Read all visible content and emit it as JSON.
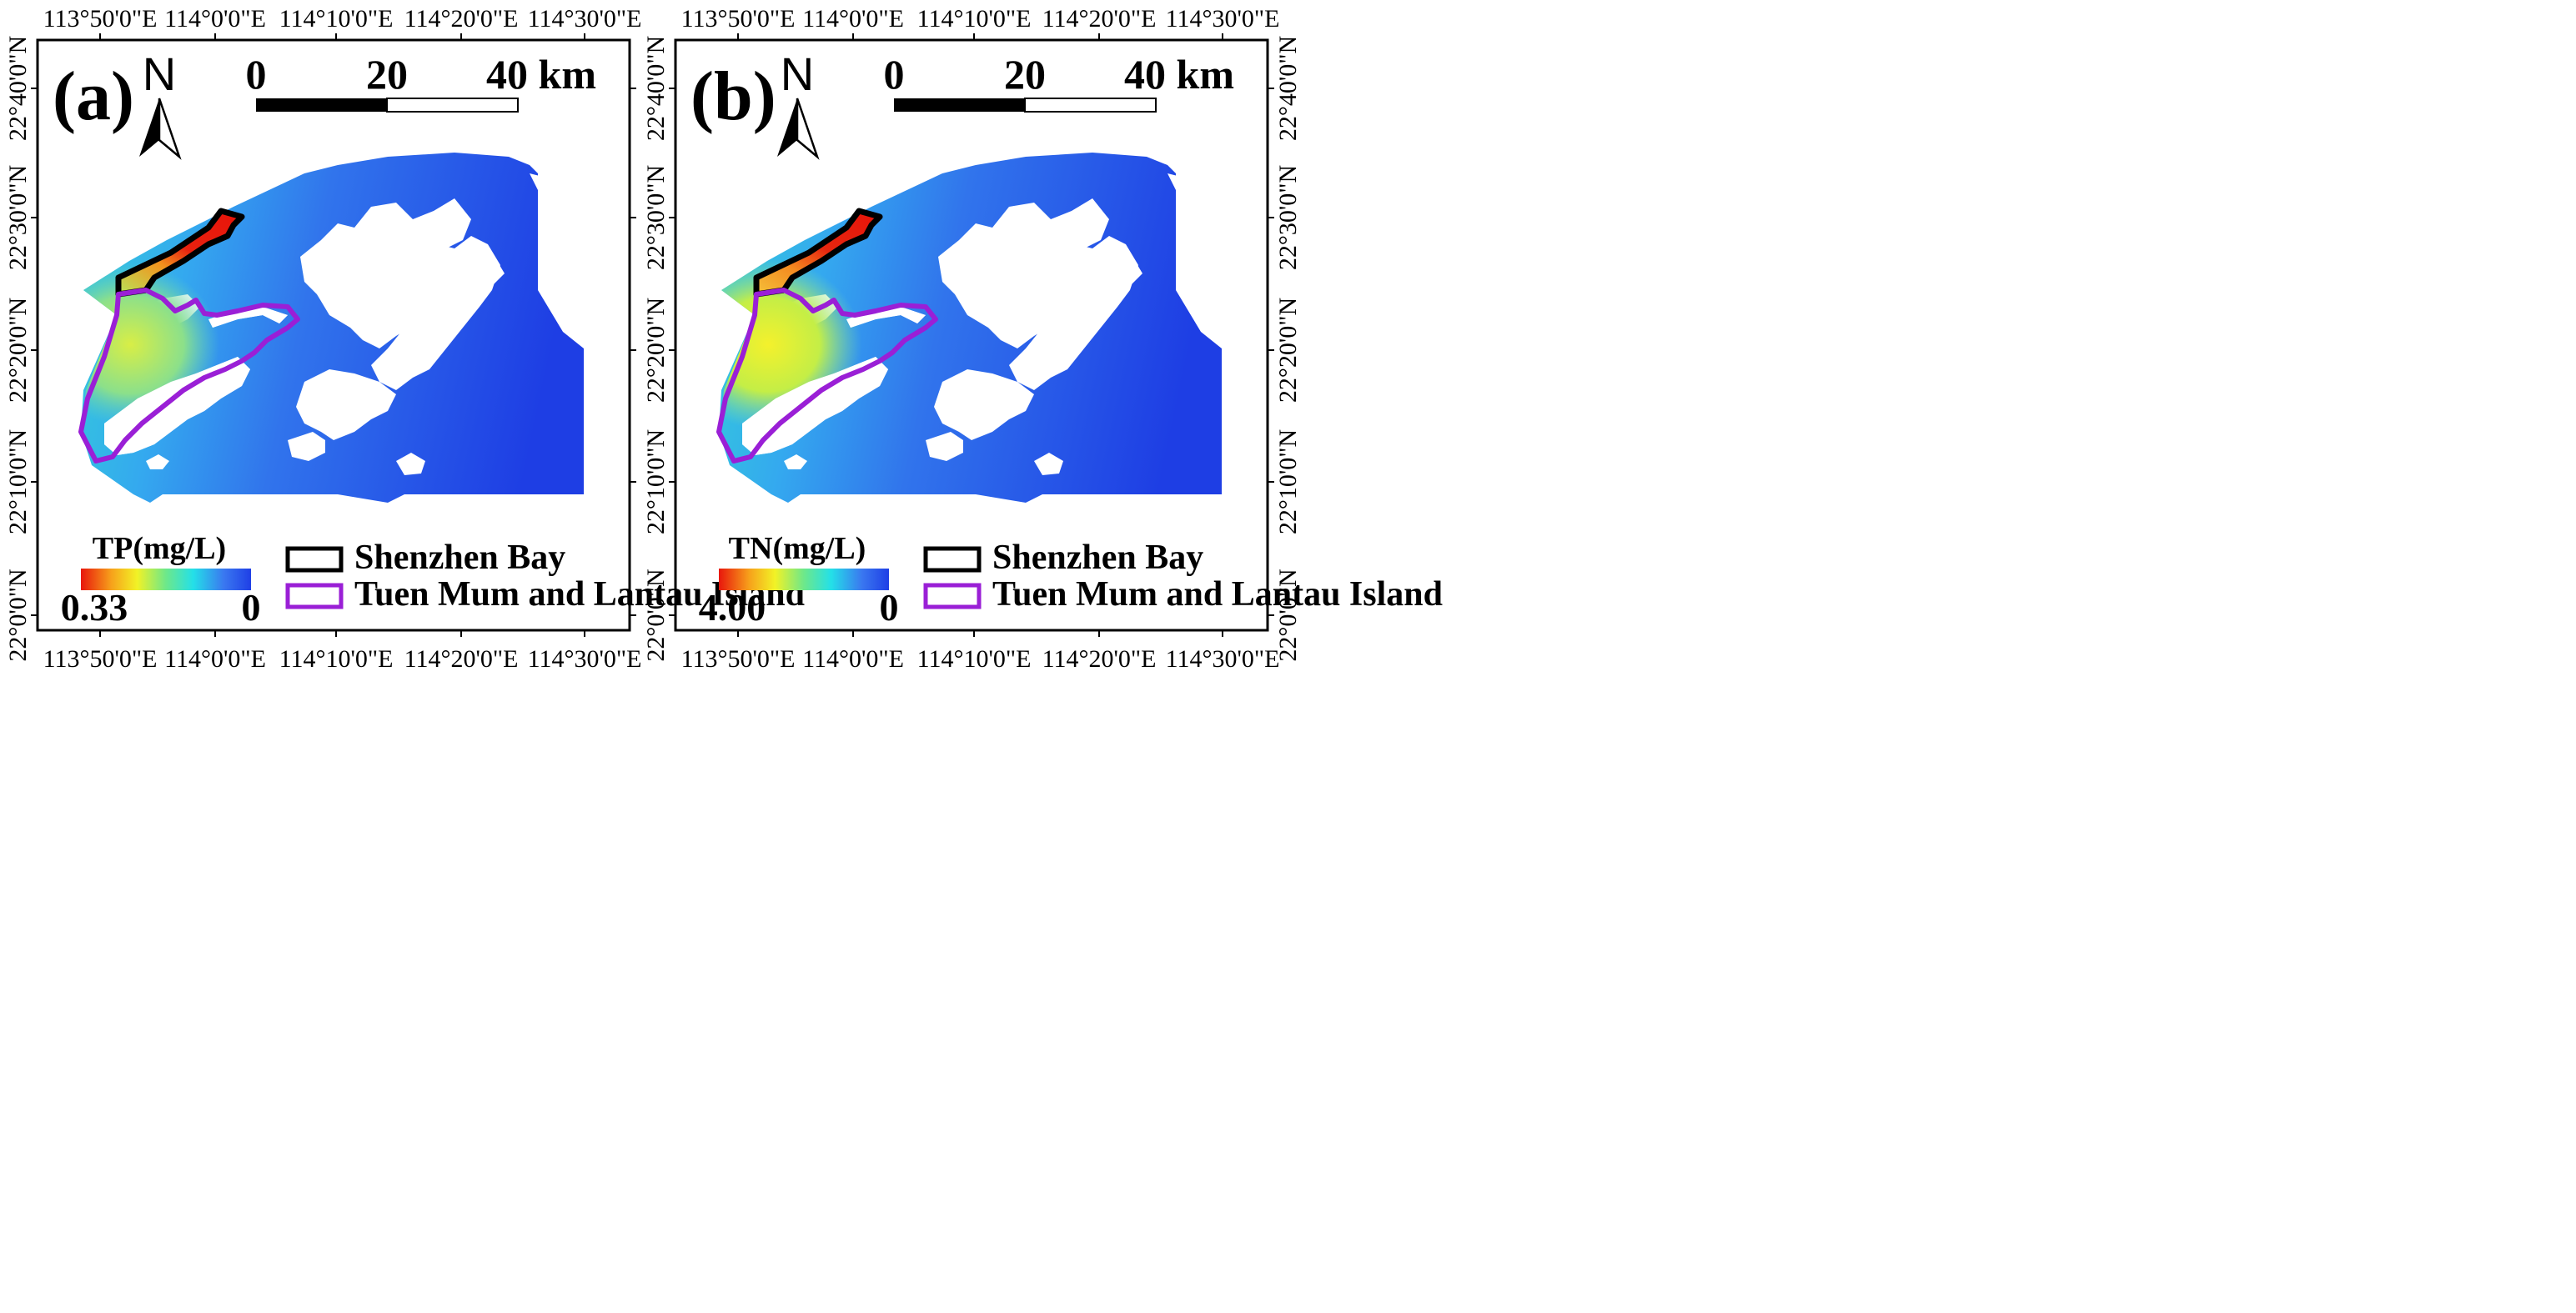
{
  "panels": [
    {
      "label": "(a)",
      "north": "N",
      "scalebar": {
        "labels": [
          "0",
          "20",
          "40 km"
        ]
      },
      "lon_ticks": [
        "113°50'0\"E",
        "114°0'0\"E",
        "114°10'0\"E",
        "114°20'0\"E",
        "114°30'0\"E"
      ],
      "lat_ticks": [
        "22°40'0\"N",
        "22°30'0\"N",
        "22°20'0\"N",
        "22°10'0\"N",
        "22°0'0\"N"
      ],
      "colorbar": {
        "title": "TP(mg/L)",
        "max_label": "0.33",
        "min_label": "0"
      },
      "legend": [
        {
          "label": "Shenzhen Bay",
          "color": "#000000"
        },
        {
          "label": "Tuen Mum and Lantau Island",
          "color": "#9a1fd6"
        }
      ]
    },
    {
      "label": "(b)",
      "north": "N",
      "scalebar": {
        "labels": [
          "0",
          "20",
          "40 km"
        ]
      },
      "lon_ticks": [
        "113°50'0\"E",
        "114°0'0\"E",
        "114°10'0\"E",
        "114°20'0\"E",
        "114°30'0\"E"
      ],
      "lat_ticks": [
        "22°40'0\"N",
        "22°30'0\"N",
        "22°20'0\"N",
        "22°10'0\"N",
        "22°0'0\"N"
      ],
      "colorbar": {
        "title": "TN(mg/L)",
        "max_label": "4.00",
        "min_label": "0"
      },
      "legend": [
        {
          "label": "Shenzhen Bay",
          "color": "#000000"
        },
        {
          "label": "Tuen Mum and Lantau Island",
          "color": "#9a1fd6"
        }
      ]
    }
  ],
  "colormap": [
    "#e8160c",
    "#f7a21b",
    "#f2f226",
    "#6de88a",
    "#24e0e8",
    "#3a78f0",
    "#1f3fe6"
  ]
}
